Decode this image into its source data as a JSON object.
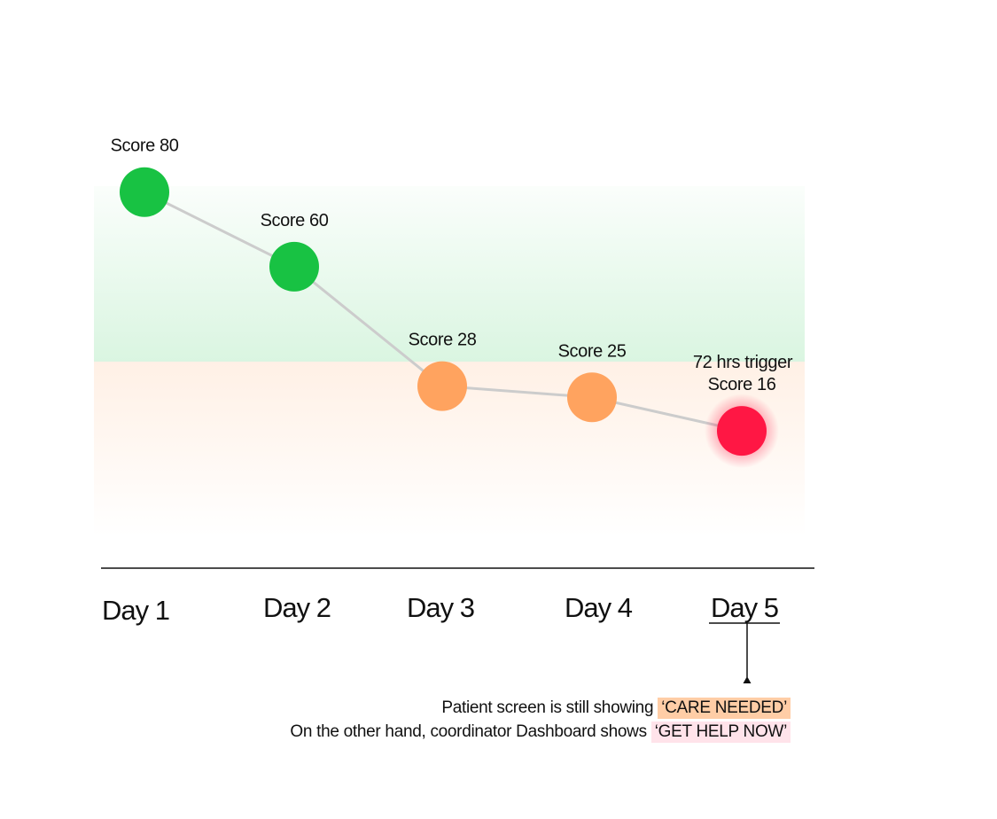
{
  "chart_data": {
    "type": "line",
    "categories": [
      "Day 1",
      "Day 2",
      "Day 3",
      "Day 4",
      "Day 5"
    ],
    "values": [
      80,
      60,
      28,
      25,
      16
    ],
    "point_labels": [
      "Score 80",
      "Score 60",
      "Score 28",
      "Score 25",
      "Score 16"
    ],
    "point_prefix": [
      "",
      "",
      "",
      "",
      "72 hrs trigger"
    ],
    "point_colors": [
      "#18c243",
      "#18c243",
      "#ffa35f",
      "#ffa35f",
      "#ff1744"
    ],
    "highlight_category": "Day 5",
    "zones": [
      {
        "label": "green",
        "color": "#18c243"
      },
      {
        "label": "orange",
        "color": "#ffa35f"
      }
    ],
    "line_color": "#cccccc",
    "axis_color": "#111111",
    "grid": false
  },
  "annotation": {
    "line1_prefix": "Patient screen is still showing ",
    "line1_status": "‘CARE NEEDED’",
    "line1_color": "#ffcda6",
    "line2_prefix": "On the other hand, coordinator Dashboard shows ",
    "line2_status": "‘GET HELP NOW’",
    "line2_color": "#ffe3ea"
  }
}
